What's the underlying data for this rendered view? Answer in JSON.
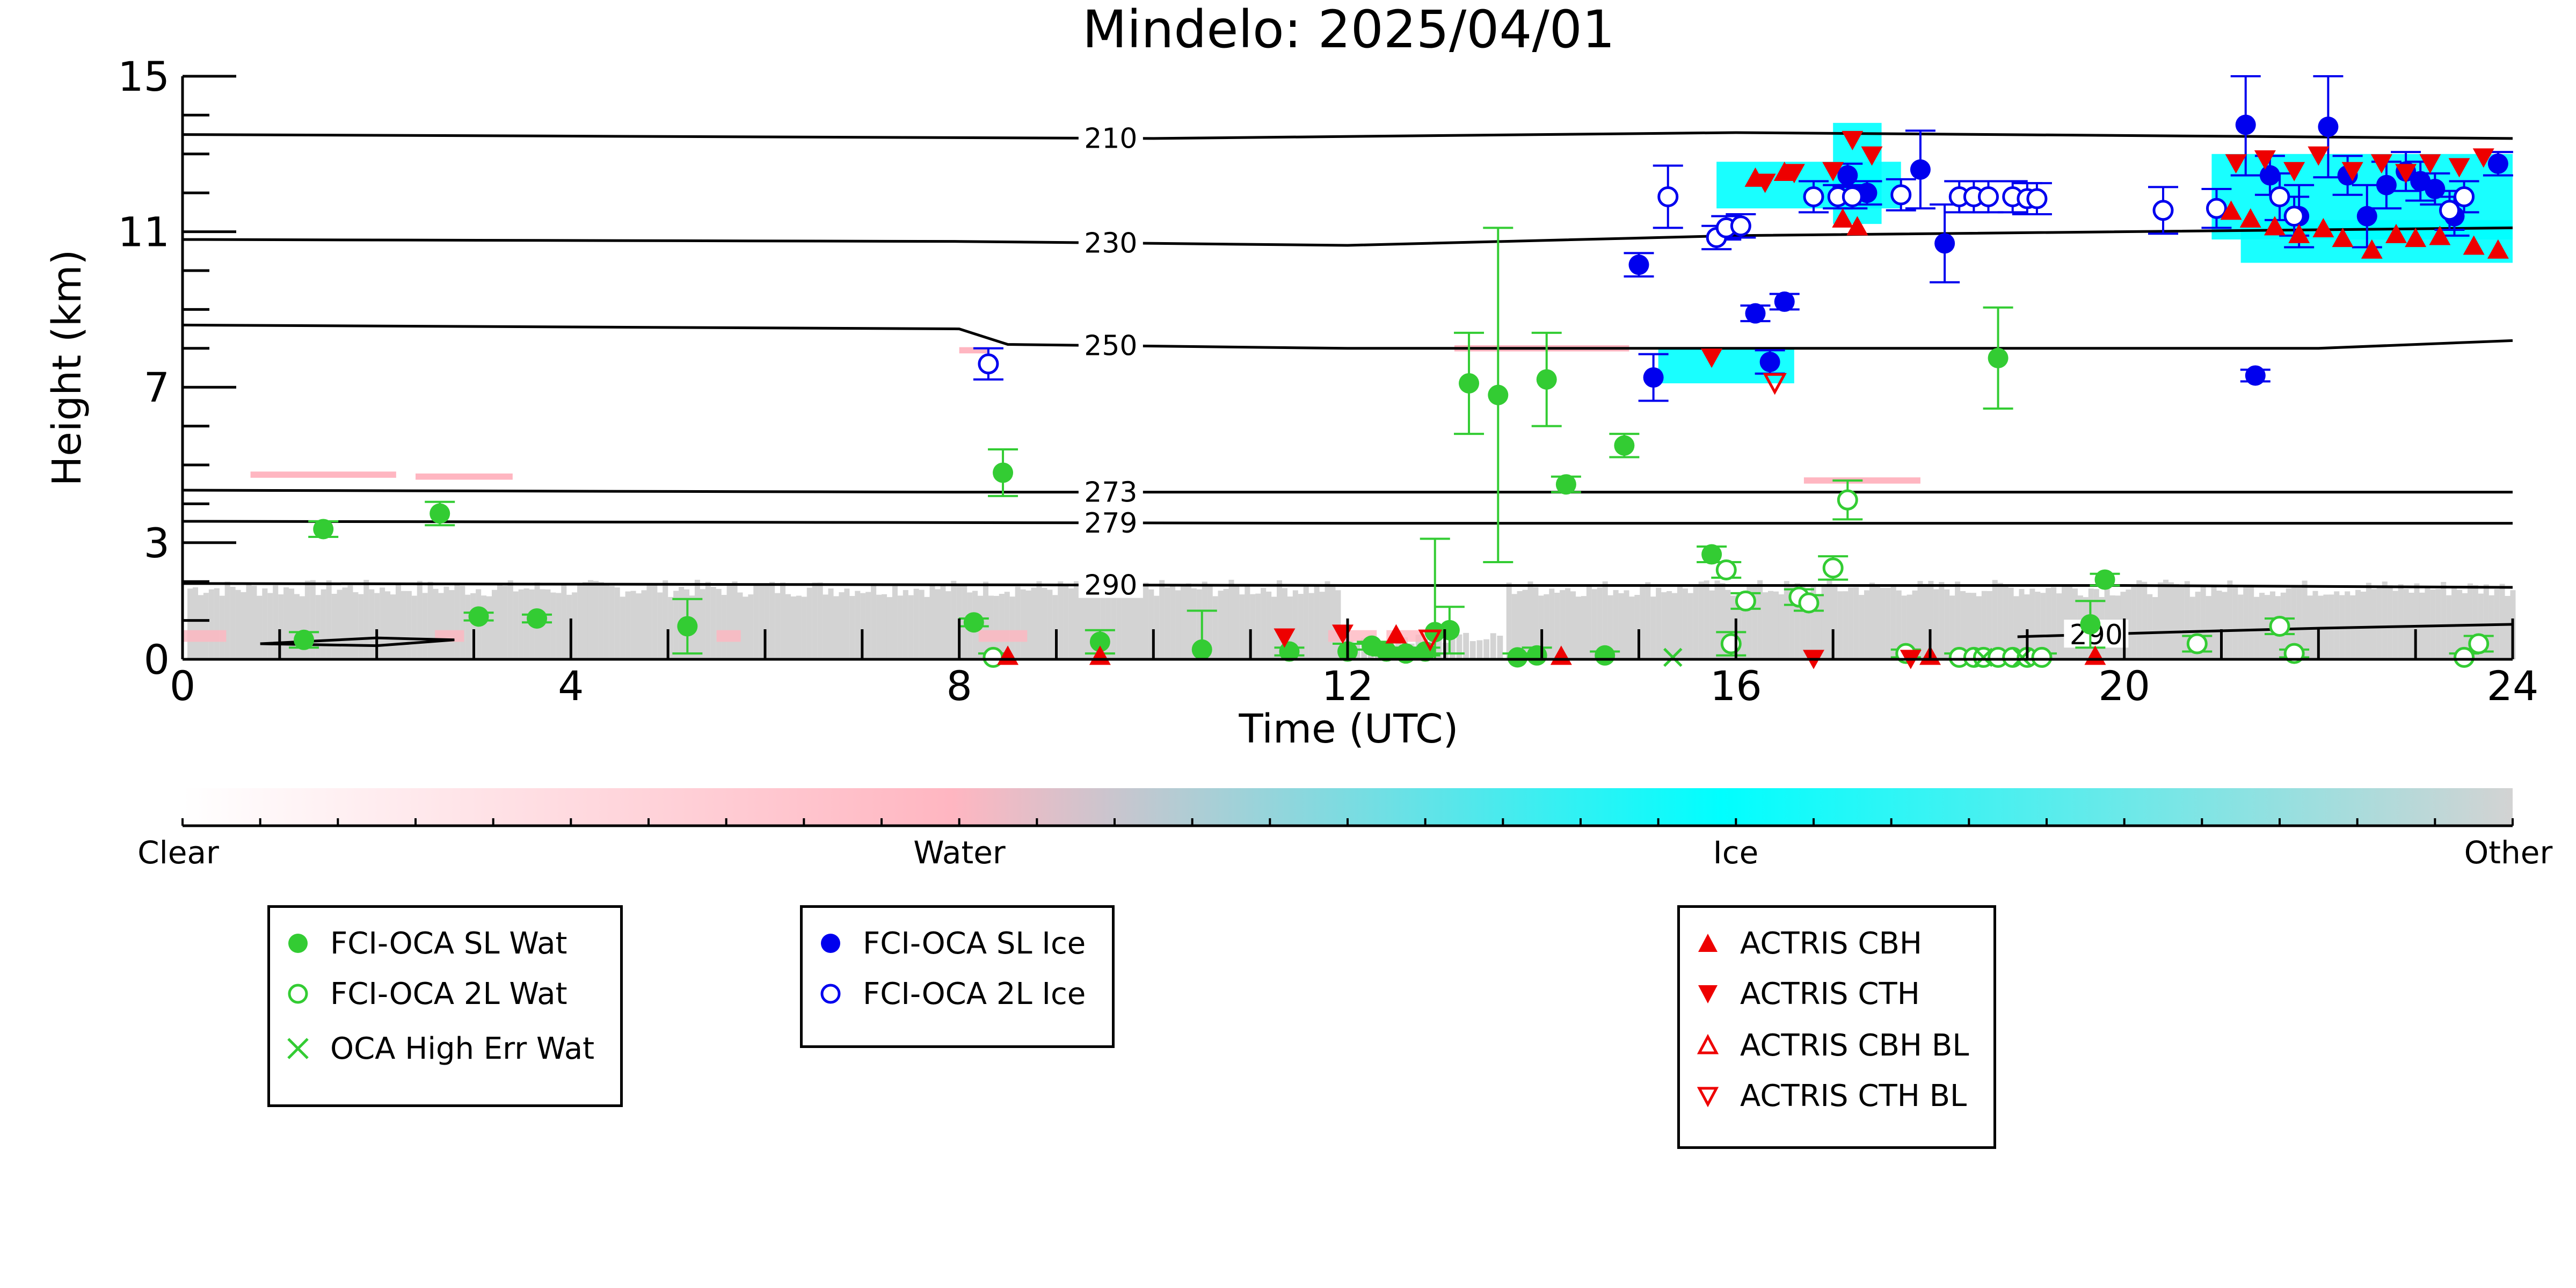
{
  "chart_data": {
    "type": "scatter",
    "title": "Mindelo: 2025/04/01",
    "xlabel": "Time (UTC)",
    "ylabel": "Height (km)",
    "xlim": [
      0,
      24
    ],
    "ylim": [
      0,
      15
    ],
    "xticks": [
      0,
      4,
      8,
      12,
      16,
      20,
      24
    ],
    "yticks": [
      0,
      3,
      7,
      11,
      15
    ],
    "grid": false,
    "contours": [
      {
        "label": "210",
        "label_x": 9.45,
        "points": [
          [
            0,
            13.5
          ],
          [
            10,
            13.4
          ],
          [
            16,
            13.55
          ],
          [
            24,
            13.4
          ]
        ]
      },
      {
        "label": "230",
        "label_x": 9.45,
        "points": [
          [
            0,
            10.8
          ],
          [
            8,
            10.75
          ],
          [
            12,
            10.65
          ],
          [
            16,
            10.9
          ],
          [
            24,
            11.1
          ]
        ]
      },
      {
        "label": "250",
        "label_x": 9.45,
        "points": [
          [
            0,
            8.6
          ],
          [
            8,
            8.5
          ],
          [
            8.5,
            8.1
          ],
          [
            12,
            8.0
          ],
          [
            16,
            8.0
          ],
          [
            22,
            8.0
          ],
          [
            24,
            8.2
          ]
        ]
      },
      {
        "label": "273",
        "label_x": 9.45,
        "points": [
          [
            0,
            4.35
          ],
          [
            8,
            4.3
          ],
          [
            16,
            4.3
          ],
          [
            24,
            4.3
          ]
        ]
      },
      {
        "label": "279",
        "label_x": 9.45,
        "points": [
          [
            0,
            3.55
          ],
          [
            12,
            3.5
          ],
          [
            24,
            3.5
          ]
        ]
      },
      {
        "label": "290",
        "label_x": 9.45,
        "points": [
          [
            0,
            1.95
          ],
          [
            12,
            1.9
          ],
          [
            20,
            1.9
          ],
          [
            24,
            1.85
          ]
        ]
      },
      {
        "label": "290",
        "label_x": 19.6,
        "points": [
          [
            18.9,
            0.58
          ],
          [
            20.5,
            0.7
          ],
          [
            22,
            0.8
          ],
          [
            24,
            0.9
          ]
        ]
      }
    ],
    "extra_contour": {
      "label": "",
      "points": [
        [
          0.8,
          0.4
        ],
        [
          2,
          0.55
        ],
        [
          2.8,
          0.5
        ],
        [
          2,
          0.35
        ],
        [
          0.8,
          0.4
        ]
      ]
    },
    "classification_colorbar": {
      "labels": [
        "Clear",
        "Water",
        "Ice",
        "Other"
      ],
      "colors": [
        "#ffffff",
        "#ffb6c1",
        "#00ffff",
        "#d3d3d3"
      ]
    },
    "series": [
      {
        "name": "FCI-OCA SL Wat",
        "marker": "filled-circle",
        "color": "#33cc33",
        "points": [
          {
            "x": 1.25,
            "y": 0.5,
            "err": 0.2
          },
          {
            "x": 1.45,
            "y": 3.35,
            "err": 0.2
          },
          {
            "x": 2.65,
            "y": 3.75,
            "err": 0.3
          },
          {
            "x": 3.05,
            "y": 1.1,
            "err": 0.1
          },
          {
            "x": 3.65,
            "y": 1.05,
            "err": 0.1
          },
          {
            "x": 5.2,
            "y": 0.85,
            "err": 0.7
          },
          {
            "x": 8.15,
            "y": 0.95,
            "err": 0.1
          },
          {
            "x": 8.45,
            "y": 4.8,
            "err": 0.6
          },
          {
            "x": 9.45,
            "y": 0.45,
            "err": 0.3
          },
          {
            "x": 10.5,
            "y": 0.25,
            "err": 1.0
          },
          {
            "x": 11.4,
            "y": 0.2,
            "err": 0.1
          },
          {
            "x": 12.0,
            "y": 0.2,
            "err": 0.2
          },
          {
            "x": 12.25,
            "y": 0.35,
            "err": 0.1
          },
          {
            "x": 12.4,
            "y": 0.2,
            "err": 0.1
          },
          {
            "x": 12.6,
            "y": 0.15,
            "err": 0.1
          },
          {
            "x": 12.8,
            "y": 0.2,
            "err": 0.1
          },
          {
            "x": 12.9,
            "y": 0.7,
            "err": 2.4
          },
          {
            "x": 13.05,
            "y": 0.75,
            "err": 0.6
          },
          {
            "x": 13.25,
            "y": 7.1,
            "err": 1.3
          },
          {
            "x": 13.55,
            "y": 6.8,
            "err": 4.3
          },
          {
            "x": 13.75,
            "y": 0.05,
            "err": 0.1
          },
          {
            "x": 13.95,
            "y": 0.1,
            "err": 0.2
          },
          {
            "x": 14.05,
            "y": 7.2,
            "err": 1.2
          },
          {
            "x": 14.25,
            "y": 4.5,
            "err": 0.2
          },
          {
            "x": 14.65,
            "y": 0.1,
            "err": 0.1
          },
          {
            "x": 14.85,
            "y": 5.5,
            "err": 0.3
          },
          {
            "x": 15.75,
            "y": 2.7,
            "err": 0.2
          },
          {
            "x": 18.7,
            "y": 7.75,
            "err": 1.3
          },
          {
            "x": 19.65,
            "y": 0.9,
            "err": 0.6
          },
          {
            "x": 19.8,
            "y": 2.05,
            "err": 0.15
          }
        ]
      },
      {
        "name": "FCI-OCA 2L Wat",
        "marker": "open-circle",
        "color": "#33cc33",
        "points": [
          {
            "x": 8.35,
            "y": 0.05,
            "err": 0.1
          },
          {
            "x": 15.9,
            "y": 2.3,
            "err": 0.2
          },
          {
            "x": 15.95,
            "y": 0.4,
            "err": 0.3
          },
          {
            "x": 16.1,
            "y": 1.5,
            "err": 0.2
          },
          {
            "x": 16.65,
            "y": 1.6,
            "err": 0.2
          },
          {
            "x": 16.75,
            "y": 1.45,
            "err": 0.2
          },
          {
            "x": 17.0,
            "y": 2.35,
            "err": 0.3
          },
          {
            "x": 17.15,
            "y": 4.1,
            "err": 0.5
          },
          {
            "x": 17.75,
            "y": 0.15,
            "err": 0.1
          },
          {
            "x": 18.3,
            "y": 0.05,
            "err": 0.1
          },
          {
            "x": 18.45,
            "y": 0.05,
            "err": 0.1
          },
          {
            "x": 18.55,
            "y": 0.05,
            "err": 0.1
          },
          {
            "x": 18.7,
            "y": 0.05,
            "err": 0.1
          },
          {
            "x": 18.85,
            "y": 0.05,
            "err": 0.1
          },
          {
            "x": 19.0,
            "y": 0.05,
            "err": 0.1
          },
          {
            "x": 19.15,
            "y": 0.05,
            "err": 0.1
          },
          {
            "x": 20.75,
            "y": 0.4,
            "err": 0.2
          },
          {
            "x": 21.6,
            "y": 0.85,
            "err": 0.2
          },
          {
            "x": 21.75,
            "y": 0.15,
            "err": 0.1
          },
          {
            "x": 23.5,
            "y": 0.05,
            "err": 0.1
          },
          {
            "x": 23.65,
            "y": 0.4,
            "err": 0.2
          }
        ]
      },
      {
        "name": "OCA High Err Wat",
        "marker": "x",
        "color": "#33cc33",
        "points": [
          {
            "x": 15.35,
            "y": 0.05
          },
          {
            "x": 18.55,
            "y": 0.05
          },
          {
            "x": 18.95,
            "y": 0.05
          }
        ]
      },
      {
        "name": "FCI-OCA SL Ice",
        "marker": "filled-circle",
        "color": "#0000ee",
        "points": [
          {
            "x": 15.0,
            "y": 10.15,
            "err": 0.3
          },
          {
            "x": 15.15,
            "y": 7.25,
            "err": 0.6
          },
          {
            "x": 16.2,
            "y": 8.9,
            "err": 0.2
          },
          {
            "x": 16.35,
            "y": 7.65,
            "err": 0.3
          },
          {
            "x": 16.5,
            "y": 9.2,
            "err": 0.2
          },
          {
            "x": 17.15,
            "y": 12.45,
            "err": 0.3
          },
          {
            "x": 17.35,
            "y": 12.0,
            "err": 0.3
          },
          {
            "x": 17.9,
            "y": 12.6,
            "err": 1.0
          },
          {
            "x": 18.15,
            "y": 10.7,
            "err": 1.0
          },
          {
            "x": 21.25,
            "y": 13.75,
            "err": 1.3
          },
          {
            "x": 21.35,
            "y": 7.3,
            "err": 0.15
          },
          {
            "x": 21.5,
            "y": 12.45,
            "err": 0.5
          },
          {
            "x": 21.8,
            "y": 11.4,
            "err": 0.8
          },
          {
            "x": 22.1,
            "y": 13.7,
            "err": 1.3
          },
          {
            "x": 22.3,
            "y": 12.45,
            "err": 0.5
          },
          {
            "x": 22.5,
            "y": 11.4,
            "err": 0.8
          },
          {
            "x": 22.7,
            "y": 12.2,
            "err": 0.6
          },
          {
            "x": 22.9,
            "y": 12.55,
            "err": 0.5
          },
          {
            "x": 23.05,
            "y": 12.3,
            "err": 0.5
          },
          {
            "x": 23.2,
            "y": 12.1,
            "err": 0.4
          },
          {
            "x": 23.4,
            "y": 11.4,
            "err": 0.5
          },
          {
            "x": 23.85,
            "y": 12.75,
            "err": 0.3
          }
        ]
      },
      {
        "name": "FCI-OCA 2L Ice",
        "marker": "open-circle",
        "color": "#0000ee",
        "points": [
          {
            "x": 8.3,
            "y": 7.6,
            "err": 0.4
          },
          {
            "x": 15.3,
            "y": 11.9,
            "err": 0.8
          },
          {
            "x": 15.8,
            "y": 10.85,
            "err": 0.3
          },
          {
            "x": 15.9,
            "y": 11.1,
            "err": 0.3
          },
          {
            "x": 16.05,
            "y": 11.15,
            "err": 0.3
          },
          {
            "x": 16.8,
            "y": 11.9,
            "err": 0.4
          },
          {
            "x": 17.05,
            "y": 11.9,
            "err": 0.3
          },
          {
            "x": 17.2,
            "y": 11.9,
            "err": 0.3
          },
          {
            "x": 17.7,
            "y": 11.95,
            "err": 0.4
          },
          {
            "x": 18.3,
            "y": 11.9,
            "err": 0.4
          },
          {
            "x": 18.45,
            "y": 11.9,
            "err": 0.4
          },
          {
            "x": 18.6,
            "y": 11.9,
            "err": 0.4
          },
          {
            "x": 18.85,
            "y": 11.9,
            "err": 0.4
          },
          {
            "x": 19.0,
            "y": 11.85,
            "err": 0.4
          },
          {
            "x": 19.1,
            "y": 11.85,
            "err": 0.4
          },
          {
            "x": 20.4,
            "y": 11.55,
            "err": 0.6
          },
          {
            "x": 20.95,
            "y": 11.6,
            "err": 0.5
          },
          {
            "x": 21.6,
            "y": 11.9,
            "err": 0.6
          },
          {
            "x": 21.75,
            "y": 11.4,
            "err": 0.5
          },
          {
            "x": 23.35,
            "y": 11.55,
            "err": 0.5
          },
          {
            "x": 23.5,
            "y": 11.9,
            "err": 0.4
          }
        ]
      },
      {
        "name": "ACTRIS CBH",
        "marker": "triangle-up",
        "color": "#ee0000",
        "points": [
          {
            "x": 8.5,
            "y": 0.05
          },
          {
            "x": 9.45,
            "y": 0.05
          },
          {
            "x": 12.5,
            "y": 0.6
          },
          {
            "x": 14.2,
            "y": 0.05
          },
          {
            "x": 16.2,
            "y": 12.35
          },
          {
            "x": 16.5,
            "y": 12.5
          },
          {
            "x": 17.1,
            "y": 11.3
          },
          {
            "x": 17.25,
            "y": 11.1
          },
          {
            "x": 18.0,
            "y": 0.05
          },
          {
            "x": 19.7,
            "y": 0.05
          },
          {
            "x": 21.1,
            "y": 11.5
          },
          {
            "x": 21.3,
            "y": 11.3
          },
          {
            "x": 21.55,
            "y": 11.1
          },
          {
            "x": 21.8,
            "y": 10.9
          },
          {
            "x": 22.05,
            "y": 11.05
          },
          {
            "x": 22.25,
            "y": 10.8
          },
          {
            "x": 22.55,
            "y": 10.5
          },
          {
            "x": 22.8,
            "y": 10.9
          },
          {
            "x": 23.0,
            "y": 10.8
          },
          {
            "x": 23.25,
            "y": 10.85
          },
          {
            "x": 23.6,
            "y": 10.6
          },
          {
            "x": 23.85,
            "y": 10.5
          }
        ]
      },
      {
        "name": "ACTRIS CTH",
        "marker": "triangle-down",
        "color": "#ee0000",
        "points": [
          {
            "x": 11.35,
            "y": 0.6
          },
          {
            "x": 11.95,
            "y": 0.7
          },
          {
            "x": 15.75,
            "y": 7.8
          },
          {
            "x": 16.3,
            "y": 12.3
          },
          {
            "x": 16.6,
            "y": 12.55
          },
          {
            "x": 17.0,
            "y": 12.6
          },
          {
            "x": 17.2,
            "y": 13.4
          },
          {
            "x": 17.4,
            "y": 13.0
          },
          {
            "x": 16.8,
            "y": 0.05
          },
          {
            "x": 17.8,
            "y": 0.05
          },
          {
            "x": 21.15,
            "y": 12.8
          },
          {
            "x": 21.45,
            "y": 12.9
          },
          {
            "x": 21.75,
            "y": 12.6
          },
          {
            "x": 22.0,
            "y": 13.0
          },
          {
            "x": 22.35,
            "y": 12.6
          },
          {
            "x": 22.65,
            "y": 12.8
          },
          {
            "x": 22.9,
            "y": 12.55
          },
          {
            "x": 23.15,
            "y": 12.8
          },
          {
            "x": 23.45,
            "y": 12.7
          },
          {
            "x": 23.7,
            "y": 12.95
          }
        ]
      },
      {
        "name": "ACTRIS CBH BL",
        "marker": "open-triangle-up",
        "color": "#ee0000",
        "points": []
      },
      {
        "name": "ACTRIS CTH BL",
        "marker": "open-triangle-down",
        "color": "#ee0000",
        "points": [
          {
            "x": 16.4,
            "y": 7.15
          },
          {
            "x": 12.85,
            "y": 0.55
          }
        ]
      }
    ],
    "legends": [
      {
        "entries": [
          "FCI-OCA SL Wat",
          "FCI-OCA 2L Wat",
          "OCA High Err Wat"
        ]
      },
      {
        "entries": [
          "FCI-OCA SL Ice",
          "FCI-OCA 2L Ice"
        ]
      },
      {
        "entries": [
          "ACTRIS CBH",
          "ACTRIS CTH",
          "ACTRIS CBH BL",
          "ACTRIS CTH BL"
        ]
      }
    ]
  }
}
